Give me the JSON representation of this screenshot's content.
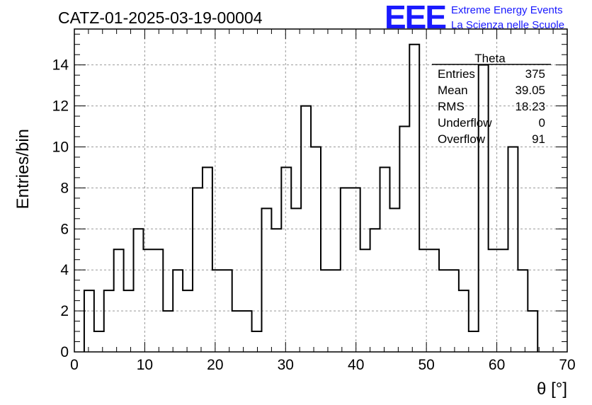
{
  "chart_data": {
    "type": "histogram",
    "title": "CATZ-01-2025-03-19-00004",
    "xlabel": "θ [°]",
    "ylabel": "Entries/bin",
    "xlim": [
      0,
      70
    ],
    "ylim": [
      0,
      15.75
    ],
    "grid": true,
    "x_ticks": [
      0,
      10,
      20,
      30,
      40,
      50,
      60,
      70
    ],
    "y_ticks": [
      0,
      2,
      4,
      6,
      8,
      10,
      12,
      14
    ],
    "bin_width": 1.4,
    "bins_start": 1.4,
    "values": [
      3,
      1,
      3,
      5,
      3,
      6,
      5,
      5,
      2,
      4,
      3,
      8,
      9,
      4,
      4,
      2,
      2,
      1,
      7,
      6,
      9,
      7,
      12,
      10,
      4,
      4,
      8,
      8,
      5,
      6,
      9,
      7,
      11,
      15,
      5,
      5,
      4,
      4,
      3,
      1,
      14,
      5,
      5,
      10,
      4,
      2
    ],
    "stats": {
      "title": "Theta",
      "rows": [
        {
          "label": "Entries",
          "value": "375"
        },
        {
          "label": "Mean",
          "value": "39.05"
        },
        {
          "label": "RMS",
          "value": "18.23"
        },
        {
          "label": "Underflow",
          "value": "0"
        },
        {
          "label": "Overflow",
          "value": "91"
        }
      ]
    }
  },
  "logo": {
    "mark": "EEE",
    "line1": "Extreme Energy Events",
    "line2": "La Scienza nelle Scuole",
    "color": "#1a1aff"
  }
}
